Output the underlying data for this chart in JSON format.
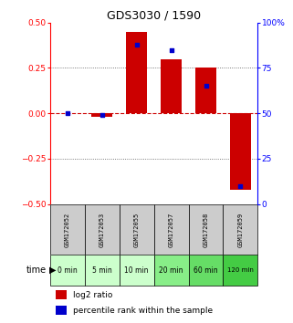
{
  "title": "GDS3030 / 1590",
  "samples": [
    "GSM172052",
    "GSM172053",
    "GSM172055",
    "GSM172057",
    "GSM172058",
    "GSM172059"
  ],
  "time_labels": [
    "0 min",
    "5 min",
    "10 min",
    "20 min",
    "60 min",
    "120 min"
  ],
  "log2_ratio": [
    0.0,
    -0.02,
    0.45,
    0.3,
    0.25,
    -0.42
  ],
  "percentile_rank": [
    50,
    49,
    88,
    85,
    65,
    10
  ],
  "bar_color": "#cc0000",
  "dot_color": "#0000cc",
  "ylim_left": [
    -0.5,
    0.5
  ],
  "ylim_right": [
    0,
    100
  ],
  "yticks_left": [
    -0.5,
    -0.25,
    0,
    0.25,
    0.5
  ],
  "yticks_right": [
    0,
    25,
    50,
    75,
    100
  ],
  "ytick_labels_right": [
    "0",
    "25",
    "50",
    "75",
    "100%"
  ],
  "grid_color": "#555555",
  "zero_line_color": "#cc0000",
  "header_bg": "#cccccc",
  "time_bg": [
    "#ccffcc",
    "#ccffcc",
    "#ccffcc",
    "#88ee88",
    "#66dd66",
    "#44cc44"
  ],
  "legend_log2": "log2 ratio",
  "legend_pct": "percentile rank within the sample",
  "time_label": "time"
}
